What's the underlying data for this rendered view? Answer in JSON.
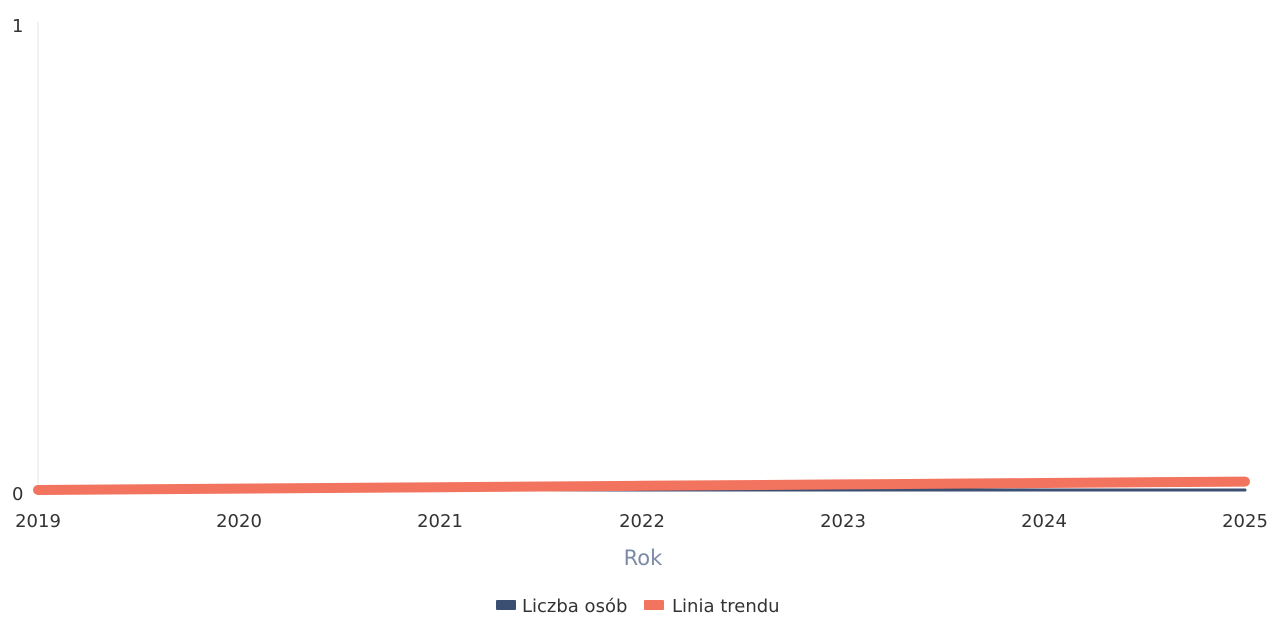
{
  "chart_data": {
    "type": "line",
    "x": [
      2019,
      2020,
      2021,
      2022,
      2023,
      2024,
      2025
    ],
    "x_tick_labels": [
      "2019",
      "2020",
      "2021",
      "2022",
      "2023",
      "2024",
      "2025"
    ],
    "y_tick_labels": [
      "1",
      "0"
    ],
    "ylim": [
      0,
      1
    ],
    "xlabel": "Rok",
    "ylabel": "",
    "grid": false,
    "legend_position": "bottom",
    "series": [
      {
        "name": "Liczba osób",
        "color": "#3b4f73",
        "values": [
          0,
          0,
          0,
          0,
          0,
          0,
          0
        ]
      },
      {
        "name": "Linia trendu",
        "color": "#f2735e",
        "values": [
          0,
          0.003,
          0.006,
          0.009,
          0.012,
          0.015,
          0.018
        ]
      }
    ]
  }
}
